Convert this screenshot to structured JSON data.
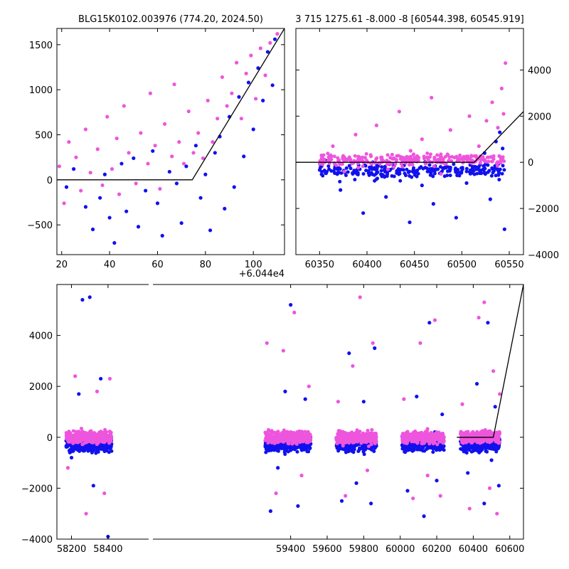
{
  "colors": {
    "series_a": "#1111ee",
    "series_b": "#ee55dd",
    "model": "#000000",
    "frame": "#000000"
  },
  "chart_data": [
    {
      "type": "scatter",
      "title": "BLG15K0102.003976 (774.20, 2024.50)",
      "xlabel": "",
      "ylabel": "",
      "x_offset_label": "+6.044e4",
      "xlim": [
        18,
        113
      ],
      "ylim": [
        -830,
        1680
      ],
      "xticks": [
        20,
        40,
        60,
        80,
        100
      ],
      "xtick_labels": [
        "20",
        "40",
        "60",
        "80",
        "100"
      ],
      "yticks": [
        -500,
        0,
        500,
        1000,
        1500
      ],
      "ytick_labels": [
        "−500",
        "0",
        "500",
        "1000",
        "1500"
      ],
      "grid": false,
      "series": [
        {
          "color": "#1111ee",
          "points": [
            [
              22,
              -80
            ],
            [
              25,
              120
            ],
            [
              30,
              -300
            ],
            [
              33,
              -550
            ],
            [
              36,
              -200
            ],
            [
              38,
              60
            ],
            [
              40,
              -420
            ],
            [
              42,
              -700
            ],
            [
              45,
              180
            ],
            [
              47,
              -350
            ],
            [
              50,
              240
            ],
            [
              52,
              -520
            ],
            [
              55,
              -120
            ],
            [
              58,
              320
            ],
            [
              60,
              -260
            ],
            [
              62,
              -620
            ],
            [
              65,
              90
            ],
            [
              68,
              -40
            ],
            [
              70,
              -480
            ],
            [
              72,
              150
            ],
            [
              76,
              380
            ],
            [
              78,
              -200
            ],
            [
              80,
              60
            ],
            [
              82,
              -560
            ],
            [
              84,
              300
            ],
            [
              86,
              480
            ],
            [
              88,
              -320
            ],
            [
              90,
              700
            ],
            [
              92,
              -80
            ],
            [
              94,
              920
            ],
            [
              96,
              260
            ],
            [
              98,
              1080
            ],
            [
              100,
              560
            ],
            [
              102,
              1240
            ],
            [
              104,
              880
            ],
            [
              106,
              1420
            ],
            [
              108,
              1050
            ],
            [
              109,
              1560
            ]
          ]
        },
        {
          "color": "#ee55dd",
          "points": [
            [
              19,
              150
            ],
            [
              21,
              -260
            ],
            [
              23,
              420
            ],
            [
              26,
              250
            ],
            [
              28,
              -120
            ],
            [
              30,
              560
            ],
            [
              32,
              80
            ],
            [
              35,
              340
            ],
            [
              37,
              -60
            ],
            [
              39,
              700
            ],
            [
              41,
              120
            ],
            [
              43,
              460
            ],
            [
              44,
              -160
            ],
            [
              46,
              820
            ],
            [
              48,
              300
            ],
            [
              51,
              -40
            ],
            [
              53,
              520
            ],
            [
              56,
              180
            ],
            [
              57,
              960
            ],
            [
              59,
              380
            ],
            [
              61,
              -100
            ],
            [
              63,
              620
            ],
            [
              66,
              260
            ],
            [
              67,
              1060
            ],
            [
              69,
              420
            ],
            [
              71,
              180
            ],
            [
              73,
              760
            ],
            [
              75,
              300
            ],
            [
              77,
              520
            ],
            [
              79,
              240
            ],
            [
              81,
              880
            ],
            [
              83,
              420
            ],
            [
              85,
              680
            ],
            [
              87,
              1140
            ],
            [
              89,
              820
            ],
            [
              91,
              960
            ],
            [
              93,
              1300
            ],
            [
              95,
              680
            ],
            [
              97,
              1180
            ],
            [
              99,
              1380
            ],
            [
              101,
              900
            ],
            [
              103,
              1460
            ],
            [
              105,
              1160
            ],
            [
              107,
              1520
            ],
            [
              110,
              1620
            ]
          ]
        },
        {
          "color": "#000000",
          "kind": "model",
          "points": [
            [
              18,
              0
            ],
            [
              74.5,
              0
            ],
            [
              113,
              1680
            ]
          ]
        }
      ]
    },
    {
      "type": "scatter",
      "title": "3 715 1275.61 -8.000 -8 [60544.398, 60545.919]",
      "xlabel": "",
      "ylabel": "",
      "xlim": [
        60325,
        60565
      ],
      "ylim": [
        -4000,
        5800
      ],
      "xticks": [
        60350,
        60400,
        60450,
        60500,
        60550
      ],
      "xtick_labels": [
        "60350",
        "60400",
        "60450",
        "60500",
        "60550"
      ],
      "yticks": [
        -4000,
        -2000,
        0,
        2000,
        4000
      ],
      "ytick_labels": [
        "−4000",
        "−2000",
        "0",
        "2000",
        "4000"
      ],
      "y_axis_side": "right",
      "grid": false,
      "series": [
        {
          "color": "#1111ee",
          "points": [
            [
              60360,
              -300
            ],
            [
              60372,
              -1200
            ],
            [
              60385,
              -500
            ],
            [
              60396,
              -2200
            ],
            [
              60408,
              -800
            ],
            [
              60420,
              -1500
            ],
            [
              60432,
              -400
            ],
            [
              60445,
              -2600
            ],
            [
              60458,
              -1000
            ],
            [
              60470,
              -1800
            ],
            [
              60482,
              -600
            ],
            [
              60494,
              -2400
            ],
            [
              60505,
              -900
            ],
            [
              60516,
              -300
            ],
            [
              60524,
              400
            ],
            [
              60530,
              -1600
            ],
            [
              60536,
              900
            ],
            [
              60540,
              1300
            ],
            [
              60543,
              600
            ],
            [
              60545,
              -2900
            ]
          ]
        },
        {
          "color": "#ee55dd",
          "points": [
            [
              60352,
              300
            ],
            [
              60364,
              700
            ],
            [
              60376,
              -400
            ],
            [
              60388,
              1200
            ],
            [
              60398,
              200
            ],
            [
              60410,
              1600
            ],
            [
              60422,
              -300
            ],
            [
              60434,
              2200
            ],
            [
              60446,
              500
            ],
            [
              60458,
              1000
            ],
            [
              60468,
              2800
            ],
            [
              60478,
              -500
            ],
            [
              60488,
              1400
            ],
            [
              60498,
              300
            ],
            [
              60508,
              2000
            ],
            [
              60518,
              700
            ],
            [
              60526,
              1800
            ],
            [
              60532,
              2600
            ],
            [
              60538,
              1500
            ],
            [
              60542,
              3200
            ],
            [
              60544,
              2100
            ],
            [
              60546,
              4300
            ]
          ]
        },
        {
          "color": "#000000",
          "kind": "model",
          "points": [
            [
              60325,
              0
            ],
            [
              60513,
              0
            ],
            [
              60565,
              2200
            ]
          ]
        }
      ]
    },
    {
      "type": "scatter",
      "title": "",
      "xlabel": "",
      "ylabel": "",
      "xlim": [
        58120,
        60675
      ],
      "ylim": [
        -4000,
        6000
      ],
      "broken_axis_note": "x-axis has a break near 58440",
      "xticks": [
        58200,
        58400,
        59400,
        59600,
        59800,
        60000,
        60200,
        60400,
        60600
      ],
      "xtick_labels": [
        "58200",
        "58400",
        "59400",
        "59600",
        "59800",
        "60000",
        "60200",
        "60400",
        "60600"
      ],
      "yticks": [
        -4000,
        -2000,
        0,
        2000,
        4000
      ],
      "ytick_labels": [
        "−4000",
        "−2000",
        "0",
        "2000",
        "4000"
      ],
      "grid": false,
      "seasons": [
        [
          58170,
          58420
        ],
        [
          59260,
          59510
        ],
        [
          59650,
          59870
        ],
        [
          60010,
          60240
        ],
        [
          60330,
          60545
        ]
      ],
      "series": [
        {
          "color": "#1111ee",
          "points": [
            [
              58200,
              -800
            ],
            [
              58240,
              1700
            ],
            [
              58260,
              5400
            ],
            [
              58300,
              5500
            ],
            [
              58320,
              -1900
            ],
            [
              58360,
              2300
            ],
            [
              58400,
              -3900
            ],
            [
              59290,
              -2900
            ],
            [
              59330,
              -1200
            ],
            [
              59370,
              1800
            ],
            [
              59400,
              5200
            ],
            [
              59440,
              -2700
            ],
            [
              59480,
              1500
            ],
            [
              59680,
              -2500
            ],
            [
              59720,
              3300
            ],
            [
              59760,
              -1800
            ],
            [
              59800,
              1400
            ],
            [
              59840,
              -2600
            ],
            [
              59860,
              3500
            ],
            [
              60040,
              -2100
            ],
            [
              60090,
              1600
            ],
            [
              60130,
              -3100
            ],
            [
              60160,
              4500
            ],
            [
              60200,
              -1700
            ],
            [
              60230,
              900
            ],
            [
              60370,
              -1400
            ],
            [
              60420,
              2100
            ],
            [
              60460,
              -2600
            ],
            [
              60480,
              4500
            ],
            [
              60500,
              -900
            ],
            [
              60520,
              1200
            ],
            [
              60540,
              -1900
            ]
          ]
        },
        {
          "color": "#ee55dd",
          "points": [
            [
              58180,
              -1200
            ],
            [
              58220,
              2400
            ],
            [
              58280,
              -3000
            ],
            [
              58340,
              1800
            ],
            [
              58380,
              -2200
            ],
            [
              58410,
              2300
            ],
            [
              59270,
              3700
            ],
            [
              59320,
              -2200
            ],
            [
              59360,
              3400
            ],
            [
              59420,
              4900
            ],
            [
              59460,
              -1500
            ],
            [
              59500,
              2000
            ],
            [
              59660,
              1400
            ],
            [
              59700,
              -2300
            ],
            [
              59740,
              2800
            ],
            [
              59780,
              5500
            ],
            [
              59820,
              -1300
            ],
            [
              59850,
              3700
            ],
            [
              60020,
              1500
            ],
            [
              60070,
              -2400
            ],
            [
              60110,
              3700
            ],
            [
              60150,
              -1500
            ],
            [
              60190,
              4600
            ],
            [
              60220,
              -2300
            ],
            [
              60340,
              1300
            ],
            [
              60380,
              -2800
            ],
            [
              60430,
              4700
            ],
            [
              60460,
              5300
            ],
            [
              60490,
              -2000
            ],
            [
              60510,
              2600
            ],
            [
              60530,
              -3000
            ],
            [
              60545,
              1700
            ]
          ]
        },
        {
          "color": "#000000",
          "kind": "model",
          "points": [
            [
              60310,
              0
            ],
            [
              60510,
              0
            ],
            [
              60675,
              6000
            ]
          ]
        }
      ]
    }
  ]
}
